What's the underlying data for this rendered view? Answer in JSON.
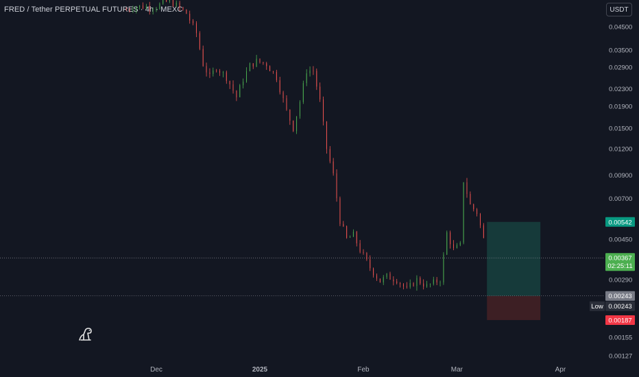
{
  "title": "FRED / Tether PERPETUAL FUTURES · 4h · MEXC",
  "currency": "USDT",
  "colors": {
    "background": "#131722",
    "up": "#26a69a",
    "up_bright": "#4caf50",
    "down": "#ef5350",
    "axis_text": "#b2b5be",
    "target_zone": "#163a3a",
    "stop_zone": "#3d1f24",
    "take_profit_label": "#089981",
    "current_label": "#4caf50",
    "entry_label": "#787b86",
    "stop_label": "#f23645",
    "low_label": "#2a2e39"
  },
  "chart_data": {
    "type": "candlestick",
    "symbol": "FRED/USDT",
    "timeframe": "4h",
    "exchange": "MEXC",
    "y_scale": "log",
    "y_ticks": [
      "0.04500",
      "0.03500",
      "0.02900",
      "0.02300",
      "0.01900",
      "0.01500",
      "0.01200",
      "0.00900",
      "0.00700",
      "0.00450",
      "0.00290",
      "0.00155",
      "0.00127"
    ],
    "x_ticks": [
      "Dec",
      "2025",
      "Feb",
      "Mar",
      "Apr"
    ],
    "price_path": [
      [
        "2024-11-22",
        0.054
      ],
      [
        "2024-11-24",
        0.056
      ],
      [
        "2024-12-01",
        0.056
      ],
      [
        "2024-12-05",
        0.06
      ],
      [
        "2024-12-10",
        0.052
      ],
      [
        "2024-12-13",
        0.042
      ],
      [
        "2024-12-15",
        0.03
      ],
      [
        "2024-12-17",
        0.026
      ],
      [
        "2024-12-19",
        0.029
      ],
      [
        "2024-12-22",
        0.026
      ],
      [
        "2024-12-25",
        0.021
      ],
      [
        "2024-12-27",
        0.0255
      ],
      [
        "2024-12-29",
        0.0295
      ],
      [
        "2024-12-31",
        0.031
      ],
      [
        "2025-01-03",
        0.03
      ],
      [
        "2025-01-06",
        0.026
      ],
      [
        "2025-01-09",
        0.018
      ],
      [
        "2025-01-11",
        0.015
      ],
      [
        "2025-01-13",
        0.02
      ],
      [
        "2025-01-15",
        0.028
      ],
      [
        "2025-01-17",
        0.028
      ],
      [
        "2025-01-19",
        0.02
      ],
      [
        "2025-01-21",
        0.012
      ],
      [
        "2025-01-23",
        0.009
      ],
      [
        "2025-01-25",
        0.0055
      ],
      [
        "2025-01-27",
        0.0045
      ],
      [
        "2025-01-29",
        0.0047
      ],
      [
        "2025-01-31",
        0.004
      ],
      [
        "2025-02-03",
        0.0033
      ],
      [
        "2025-02-06",
        0.00285
      ],
      [
        "2025-02-08",
        0.003
      ],
      [
        "2025-02-11",
        0.0029
      ],
      [
        "2025-02-14",
        0.0026
      ],
      [
        "2025-02-17",
        0.0029
      ],
      [
        "2025-02-20",
        0.0027
      ],
      [
        "2025-02-24",
        0.0029
      ],
      [
        "2025-02-26",
        0.0048
      ],
      [
        "2025-02-28",
        0.004
      ],
      [
        "2025-03-02",
        0.0042
      ],
      [
        "2025-03-03",
        0.0085
      ],
      [
        "2025-03-05",
        0.0065
      ],
      [
        "2025-03-07",
        0.006
      ],
      [
        "2025-03-09",
        0.0045
      ],
      [
        "2025-03-10",
        0.00367
      ]
    ],
    "price_lines": [
      {
        "price": 0.00542,
        "label": "0.00542",
        "role": "take-profit"
      },
      {
        "price": 0.00367,
        "label": "0.00367",
        "countdown": "02:25:11",
        "role": "current-price"
      },
      {
        "price": 0.00243,
        "label": "0.00243",
        "role": "entry"
      },
      {
        "price": 0.00243,
        "label": "0.00243",
        "tag": "Low",
        "role": "low"
      },
      {
        "price": 0.00187,
        "label": "0.00187",
        "role": "stop-loss"
      }
    ],
    "position": {
      "type": "long",
      "start": "2025-03-10",
      "end": "2025-03-26",
      "entry": 0.00243,
      "target": 0.00542,
      "stop": 0.00187
    }
  }
}
